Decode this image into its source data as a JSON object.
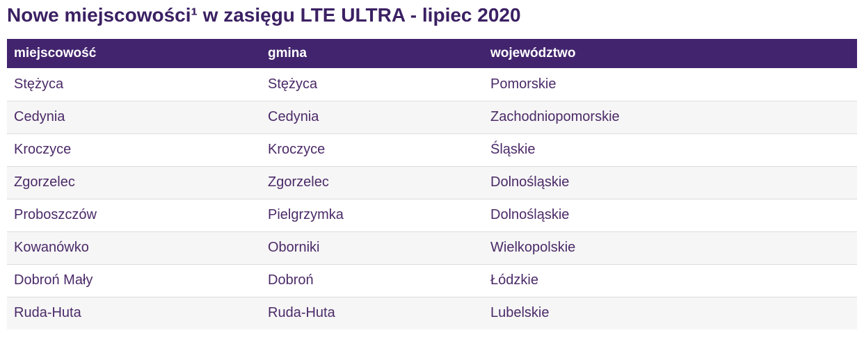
{
  "chart_data": {
    "type": "table",
    "title": "Nowe miejscowości¹ w zasięgu LTE ULTRA - lipiec 2020",
    "footnote_marker": "¹",
    "columns": [
      "miejscowość",
      "gmina",
      "województwo"
    ],
    "rows": [
      [
        "Stężyca",
        "Stężyca",
        "Pomorskie"
      ],
      [
        "Cedynia",
        "Cedynia",
        "Zachodniopomorskie"
      ],
      [
        "Kroczyce",
        "Kroczyce",
        "Śląskie"
      ],
      [
        "Zgorzelec",
        "Zgorzelec",
        "Dolnośląskie"
      ],
      [
        "Proboszczów",
        "Pielgrzymka",
        "Dolnośląskie"
      ],
      [
        "Kowanówko",
        "Oborniki",
        "Wielkopolskie"
      ],
      [
        "Dobroń Mały",
        "Dobroń",
        "Łódzkie"
      ],
      [
        "Ruda-Huta",
        "Ruda-Huta",
        "Lubelskie"
      ]
    ],
    "layout": {
      "zebra_striping": true,
      "header_text_color": "#ffffff"
    }
  },
  "colors": {
    "header_bg": "#42246e",
    "title_text": "#3b2063",
    "cell_text": "#4b2a68",
    "row_alt_bg": "#f6f6f6",
    "divider": "#dcdcdc"
  }
}
